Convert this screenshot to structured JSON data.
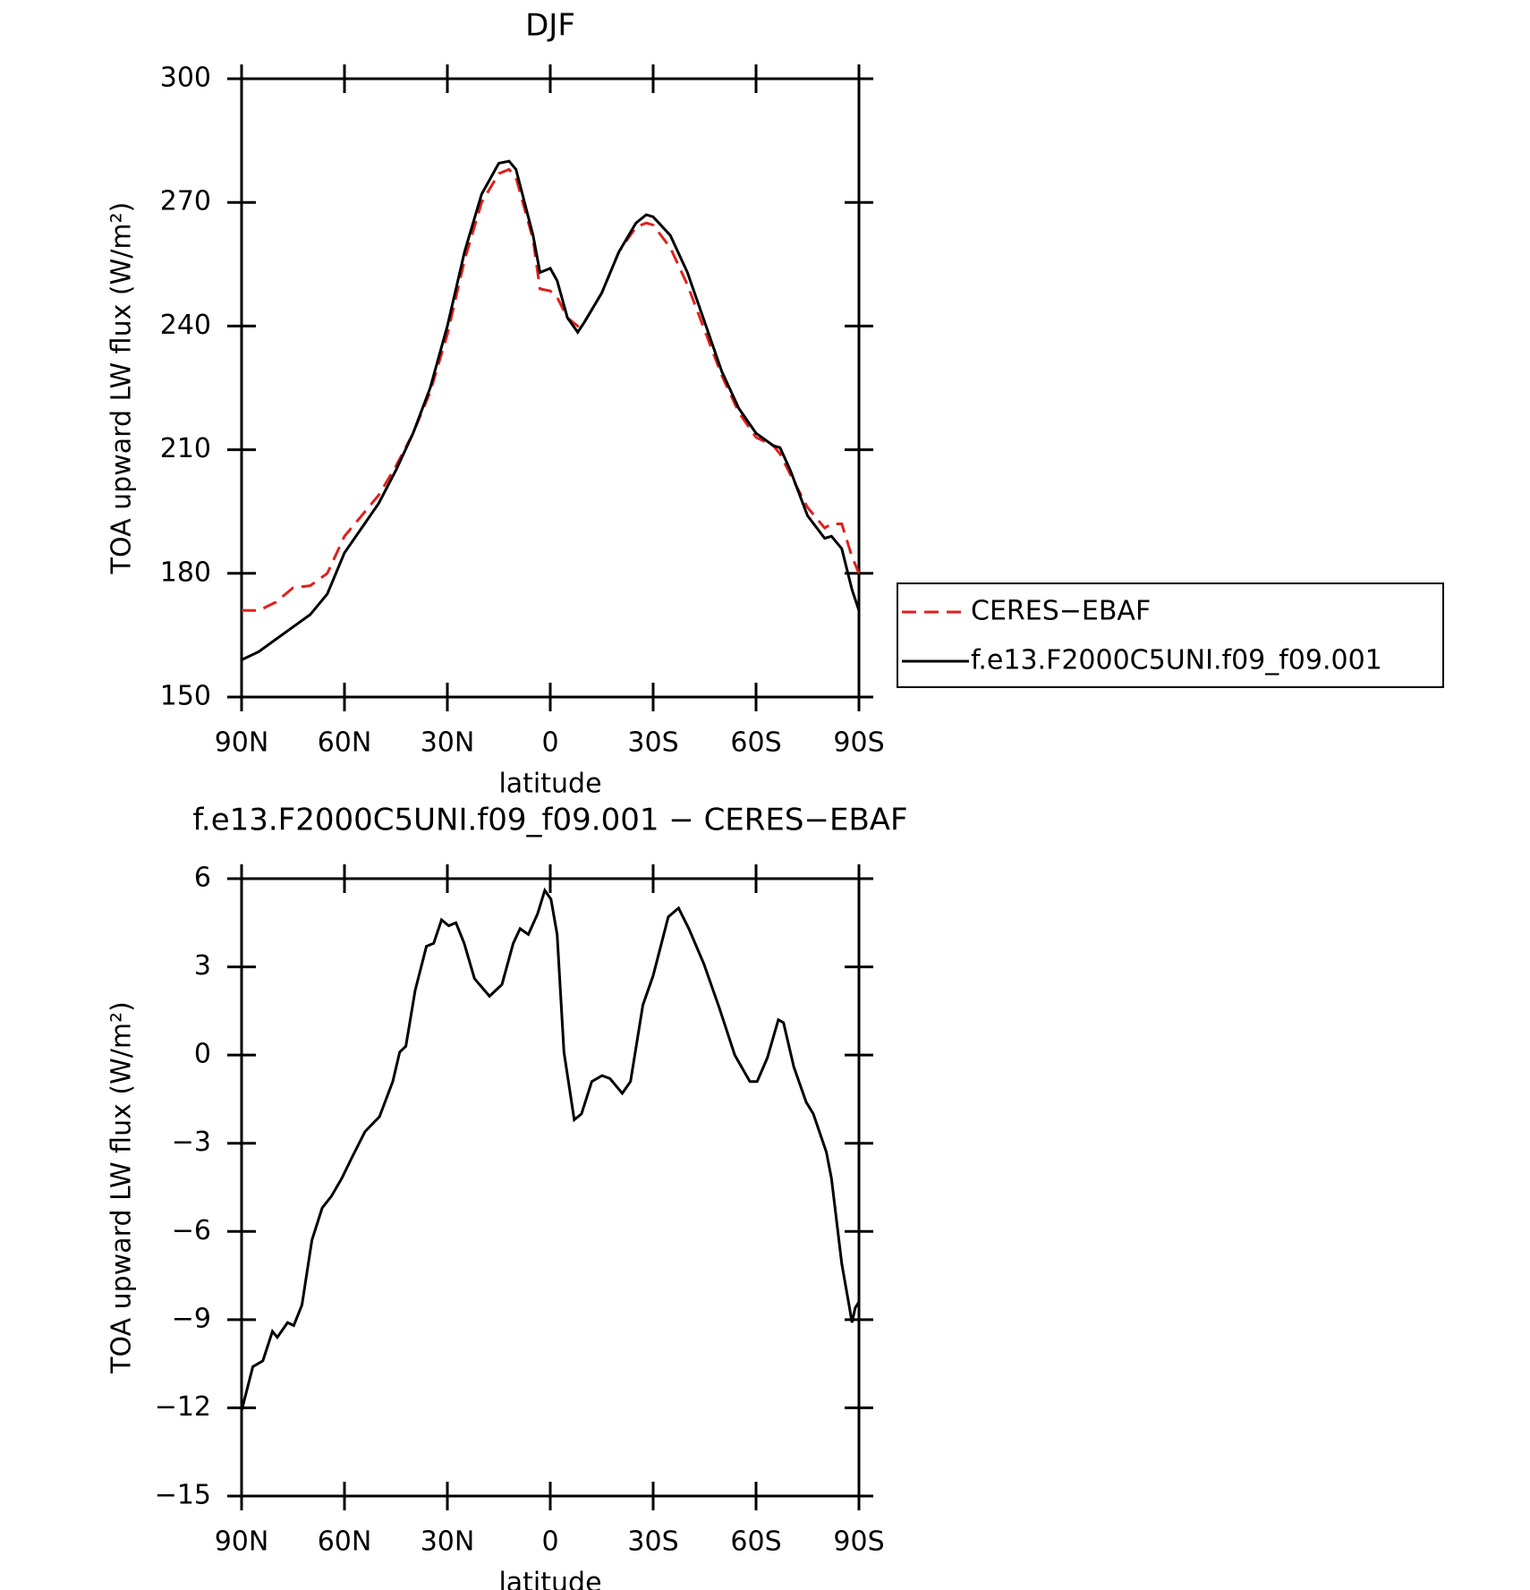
{
  "chart_data": [
    {
      "type": "line",
      "title": "DJF",
      "xlabel": "latitude",
      "ylabel": "TOA upward LW flux (W/m²)",
      "x": [
        90,
        85,
        80,
        75,
        70,
        65,
        60,
        55,
        50,
        45,
        40,
        35,
        30,
        25,
        20,
        15,
        12,
        10,
        5,
        3,
        0,
        -2,
        -5,
        -8,
        -10,
        -15,
        -20,
        -25,
        -28,
        -30,
        -35,
        -40,
        -45,
        -50,
        -55,
        -60,
        -65,
        -67,
        -70,
        -75,
        -80,
        -82,
        -85,
        -88,
        -90
      ],
      "series": [
        {
          "name": "CERES-EBAF",
          "color": "#e0201b",
          "style": "dashed",
          "values": [
            171,
            171,
            173,
            176.5,
            177,
            180,
            189,
            194,
            199,
            206,
            214,
            224,
            238,
            256,
            270,
            277,
            278,
            276,
            261,
            249,
            248.5,
            247,
            242,
            240,
            241,
            248,
            258,
            264,
            265,
            264.5,
            259,
            250,
            239,
            228,
            219,
            213,
            211,
            209,
            204,
            196,
            191,
            192,
            192,
            184,
            180
          ]
        },
        {
          "name": "f.e13.F2000C5UNI.f09_f09.001",
          "color": "#000000",
          "style": "solid",
          "values": [
            159,
            161,
            164,
            167,
            170,
            175,
            185,
            191,
            197,
            205,
            214,
            225,
            240,
            258,
            272,
            279.5,
            280,
            278,
            262,
            253,
            254,
            251,
            242,
            238.5,
            241,
            248,
            258,
            265,
            267,
            266.5,
            262,
            253,
            241,
            229,
            220,
            214,
            211,
            210.5,
            205,
            194,
            188.5,
            189,
            186,
            176,
            171
          ]
        }
      ],
      "xlim": [
        90,
        -90
      ],
      "xticks": [
        {
          "value": 90,
          "label": "90N"
        },
        {
          "value": 60,
          "label": "60N"
        },
        {
          "value": 30,
          "label": "30N"
        },
        0,
        {
          "value": -30,
          "label": "30S"
        },
        {
          "value": -60,
          "label": "60S"
        },
        {
          "value": -90,
          "label": "90S"
        }
      ],
      "ylim": [
        150,
        300
      ],
      "yticks": [
        150,
        180,
        210,
        240,
        270,
        300
      ],
      "legend": "outside-right"
    },
    {
      "type": "line",
      "title": "f.e13.F2000C5UNI.f09_f09.001 − CERES−EBAF",
      "xlabel": "latitude",
      "ylabel": "TOA upward LW flux (W/m²)",
      "x": [
        90,
        86.7,
        83.8,
        81,
        79.6,
        76.6,
        74.8,
        72.4,
        69.5,
        66.5,
        63.8,
        60.8,
        57.9,
        54,
        49.8,
        45.9,
        43.9,
        42.1,
        39.4,
        36.1,
        34,
        31.7,
        29.6,
        27.5,
        25.1,
        22.1,
        17.7,
        14.1,
        10.8,
        8.8,
        6.4,
        3.7,
        1.6,
        -0.2,
        -2,
        -4,
        -7,
        -9.1,
        -12.1,
        -15.1,
        -17.4,
        -21,
        -23.4,
        -27,
        -30,
        -34.4,
        -37.4,
        -40.4,
        -44.8,
        -49.3,
        -53.8,
        -58.2,
        -60.3,
        -63.3,
        -66.5,
        -68,
        -71,
        -74.6,
        -76.7,
        -80.5,
        -82,
        -85,
        -87.1,
        -88,
        -88.9,
        -90
      ],
      "series": [
        {
          "color": "#000000",
          "style": "solid",
          "values": [
            -12.1,
            -10.6,
            -10.4,
            -9.4,
            -9.6,
            -9.1,
            -9.2,
            -8.5,
            -6.3,
            -5.2,
            -4.8,
            -4.2,
            -3.5,
            -2.6,
            -2.1,
            -0.9,
            0.1,
            0.3,
            2.2,
            3.7,
            3.8,
            4.6,
            4.4,
            4.5,
            3.8,
            2.6,
            2.0,
            2.4,
            3.8,
            4.3,
            4.1,
            4.8,
            5.6,
            5.3,
            4.1,
            0.1,
            -2.2,
            -2,
            -0.9,
            -0.7,
            -0.8,
            -1.3,
            -0.9,
            1.7,
            2.7,
            4.7,
            5.0,
            4.3,
            3.1,
            1.6,
            0,
            -0.9,
            -0.9,
            -0.1,
            1.2,
            1.1,
            -0.4,
            -1.6,
            -2.0,
            -3.3,
            -4.2,
            -7.1,
            -8.5,
            -9.1,
            -8.6,
            -8.4
          ]
        }
      ],
      "xlim": [
        90,
        -90
      ],
      "xticks": [
        {
          "value": 90,
          "label": "90N"
        },
        {
          "value": 60,
          "label": "60N"
        },
        {
          "value": 30,
          "label": "30N"
        },
        0,
        {
          "value": -30,
          "label": "30S"
        },
        {
          "value": -60,
          "label": "60S"
        },
        {
          "value": -90,
          "label": "90S"
        }
      ],
      "ylim": [
        -15,
        6
      ],
      "yticks": [
        -15,
        -12,
        -9,
        -6,
        -3,
        0,
        3,
        6
      ]
    }
  ]
}
